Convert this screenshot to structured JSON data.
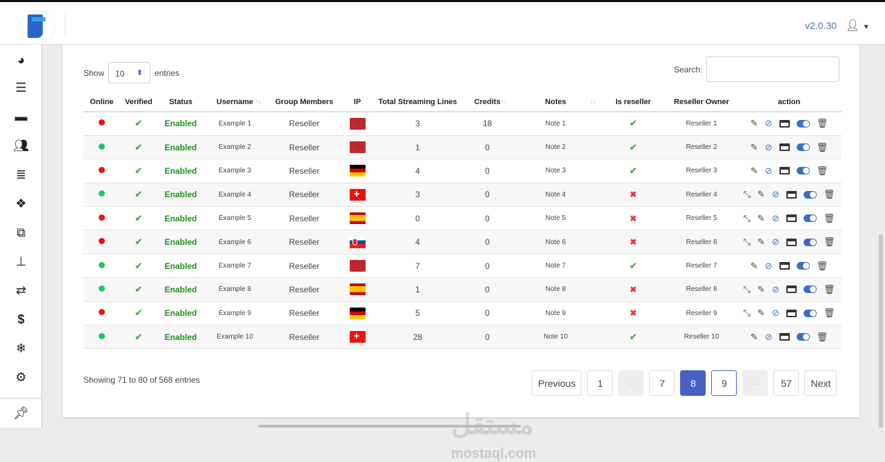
{
  "header": {
    "version": "v2.0.30",
    "user_icon": "user-icon"
  },
  "sidebar": {
    "icons": [
      "dashboard-icon",
      "menu-icon",
      "monitor-icon",
      "users-icon",
      "server-icon",
      "cubes-icon",
      "clone-icon",
      "sitemap-icon",
      "retweet-icon",
      "dollar-icon",
      "snowflake-icon",
      "cogs-icon",
      "pin-icon"
    ]
  },
  "controls": {
    "show_label": "Show",
    "entries_value": "10",
    "entries_label": "entries",
    "search_label": "Search:",
    "search_value": ""
  },
  "table": {
    "columns": [
      "Online",
      "Verified",
      "Status",
      "Username",
      "Group Members",
      "IP",
      "Total Streaming Lines",
      "Credits",
      "Notes",
      "Is reseller",
      "Reseller Owner",
      "action"
    ],
    "rows": [
      {
        "online": "red",
        "status": "Enabled",
        "username": "Example 1",
        "group": "Reseller",
        "flag": "Morocco",
        "lines": "3",
        "credits": "18",
        "notes": "Note 1",
        "reseller": true,
        "owner": "Reseller 1",
        "extra": false
      },
      {
        "online": "green",
        "status": "Enabled",
        "username": "Example 2",
        "group": "Reseller",
        "flag": "Morocco",
        "lines": "1",
        "credits": "0",
        "notes": "Note 2",
        "reseller": true,
        "owner": "Reseller 2",
        "extra": false
      },
      {
        "online": "red",
        "status": "Enabled",
        "username": "Example 3",
        "group": "Reseller",
        "flag": "Germany",
        "lines": "4",
        "credits": "0",
        "notes": "Note 3",
        "reseller": true,
        "owner": "Reseller 3",
        "extra": false
      },
      {
        "online": "green",
        "status": "Enabled",
        "username": "Example 4",
        "group": "Reseller",
        "flag": "Switzerland",
        "lines": "3",
        "credits": "0",
        "notes": "Note 4",
        "reseller": false,
        "owner": "Reseller 4",
        "extra": true
      },
      {
        "online": "red",
        "status": "Enabled",
        "username": "Example 5",
        "group": "Reseller",
        "flag": "Spain",
        "lines": "0",
        "credits": "0",
        "notes": "Note 5",
        "reseller": false,
        "owner": "Reseller 5",
        "extra": true
      },
      {
        "online": "red",
        "status": "Enabled",
        "username": "Example 6",
        "group": "Reseller",
        "flag": "Slovakia",
        "lines": "4",
        "credits": "0",
        "notes": "Note 6",
        "reseller": false,
        "owner": "Reseller 6",
        "extra": true
      },
      {
        "online": "green",
        "status": "Enabled",
        "username": "Example 7",
        "group": "Reseller",
        "flag": "Morocco",
        "lines": "7",
        "credits": "0",
        "notes": "Note 7",
        "reseller": true,
        "owner": "Reseller 7",
        "extra": false
      },
      {
        "online": "green",
        "status": "Enabled",
        "username": "Example 8",
        "group": "Reseller",
        "flag": "Spain",
        "lines": "1",
        "credits": "0",
        "notes": "Note 8",
        "reseller": false,
        "owner": "Reseller 8",
        "extra": true
      },
      {
        "online": "red",
        "status": "Enabled",
        "username": "Example 9",
        "group": "Reseller",
        "flag": "Germany",
        "lines": "5",
        "credits": "0",
        "notes": "Note 9",
        "reseller": false,
        "owner": "Reseller 9",
        "extra": true
      },
      {
        "online": "green",
        "status": "Enabled",
        "username": "Example 10",
        "group": "Reseller",
        "flag": "Switzerland",
        "lines": "28",
        "credits": "0",
        "notes": "Note 10",
        "reseller": true,
        "owner": "Reseller 10",
        "extra": false
      }
    ]
  },
  "footer": {
    "info": "Showing 71 to 80 of 568 entries",
    "pages": [
      "Previous",
      "1",
      "…",
      "7",
      "8",
      "9",
      "…",
      "57",
      "Next"
    ],
    "current": "8"
  },
  "watermark": {
    "arabic": "مستقل",
    "latin": "mostaql.com"
  },
  "colors": {
    "online": "#22c55e",
    "offline": "#ee1111",
    "enabled": "#1e8f1e",
    "accent": "#4760c4"
  }
}
